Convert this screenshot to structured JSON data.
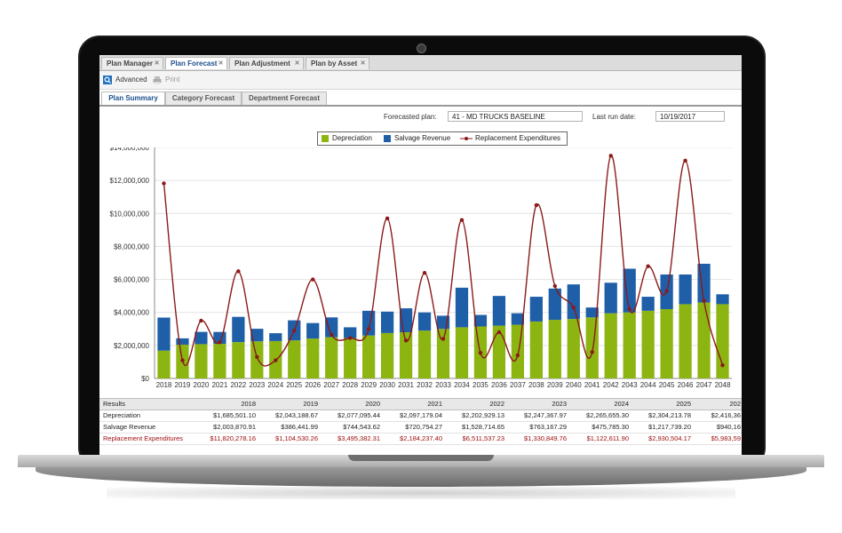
{
  "tabs": [
    {
      "label": "Plan Manager",
      "active": false
    },
    {
      "label": "Plan Forecast",
      "active": true
    },
    {
      "label": "Plan Adjustment",
      "active": false
    },
    {
      "label": "Plan by Asset",
      "active": false
    }
  ],
  "toolbar": {
    "advanced_label": "Advanced",
    "print_label": "Print"
  },
  "subtabs": [
    {
      "label": "Plan Summary",
      "active": true
    },
    {
      "label": "Category Forecast",
      "active": false
    },
    {
      "label": "Department Forecast",
      "active": false
    }
  ],
  "form": {
    "plan_label": "Forecasted plan:",
    "plan_value": "41 - MD TRUCKS BASELINE",
    "run_label": "Last run date:",
    "run_value": "10/19/2017"
  },
  "colors": {
    "depreciation": "#8db512",
    "salvage": "#1f5fa8",
    "replacement": "#8b1a1a"
  },
  "chart_data": {
    "type": "bar",
    "legend": [
      "Depreciation",
      "Salvage Revenue",
      "Replacement Expenditures"
    ],
    "categories": [
      "2018",
      "2019",
      "2020",
      "2021",
      "2022",
      "2023",
      "2024",
      "2025",
      "2026",
      "2027",
      "2028",
      "2029",
      "2030",
      "2031",
      "2032",
      "2033",
      "2034",
      "2035",
      "2036",
      "2037",
      "2038",
      "2039",
      "2040",
      "2041",
      "2042",
      "2043",
      "2044",
      "2045",
      "2046",
      "2047",
      "2048"
    ],
    "yticks": [
      "$0",
      "$2,000,000",
      "$4,000,000",
      "$6,000,000",
      "$8,000,000",
      "$10,000,000",
      "$12,000,000",
      "$14,000,000"
    ],
    "ylim": [
      0,
      14000000
    ],
    "series": [
      {
        "name": "Depreciation",
        "values": [
          1685501,
          2043189,
          2077095,
          2097179,
          2202929,
          2247368,
          2265655,
          2304214,
          2416368,
          2500000,
          2450000,
          2600000,
          2750000,
          2800000,
          2900000,
          3000000,
          3100000,
          3150000,
          3200000,
          3250000,
          3450000,
          3550000,
          3600000,
          3700000,
          3950000,
          4000000,
          4100000,
          4200000,
          4500000,
          4600000,
          4500000
        ]
      },
      {
        "name": "Salvage Revenue",
        "values": [
          2003871,
          386442,
          744544,
          720754,
          1528715,
          763167,
          475786,
          1217739,
          940160,
          1200000,
          650000,
          1500000,
          1300000,
          1450000,
          1100000,
          800000,
          2400000,
          700000,
          1800000,
          700000,
          1500000,
          1900000,
          2100000,
          600000,
          1850000,
          2650000,
          850000,
          2100000,
          1800000,
          2350000,
          600000
        ]
      },
      {
        "name": "Replacement Expenditures",
        "values": [
          11820000,
          1100000,
          3500000,
          2200000,
          6500000,
          1300000,
          1100000,
          2900000,
          6000000,
          2650000,
          2450000,
          3000000,
          9700000,
          2300000,
          6400000,
          2400000,
          9600000,
          1550000,
          2800000,
          1400000,
          10500000,
          5600000,
          4300000,
          1600000,
          13500000,
          4200000,
          6800000,
          5300000,
          13200000,
          4700000,
          800000
        ]
      }
    ]
  },
  "table": {
    "header_label": "Results",
    "years": [
      "2018",
      "2019",
      "2020",
      "2021",
      "2022",
      "2023",
      "2024",
      "2025",
      "202"
    ],
    "rows": [
      {
        "label": "Depreciation",
        "values": [
          "$1,685,501.10",
          "$2,043,188.67",
          "$2,077,095.44",
          "$2,097,179.04",
          "$2,202,929.13",
          "$2,247,367.97",
          "$2,265,655.30",
          "$2,304,213.78",
          "$2,416,36"
        ]
      },
      {
        "label": "Salvage Revenue",
        "values": [
          "$2,003,870.91",
          "$386,441.99",
          "$744,543.62",
          "$720,754.27",
          "$1,528,714.65",
          "$763,167.29",
          "$475,785.30",
          "$1,217,739.20",
          "$940,16"
        ]
      },
      {
        "label": "Replacement Expenditures",
        "values": [
          "$11,820,278.16",
          "$1,104,530.26",
          "$3,495,382.31",
          "$2,184,237.40",
          "$6,511,537.23",
          "$1,330,849.76",
          "$1,122,611.90",
          "$2,930,504.17",
          "$5,983,59"
        ]
      }
    ]
  }
}
